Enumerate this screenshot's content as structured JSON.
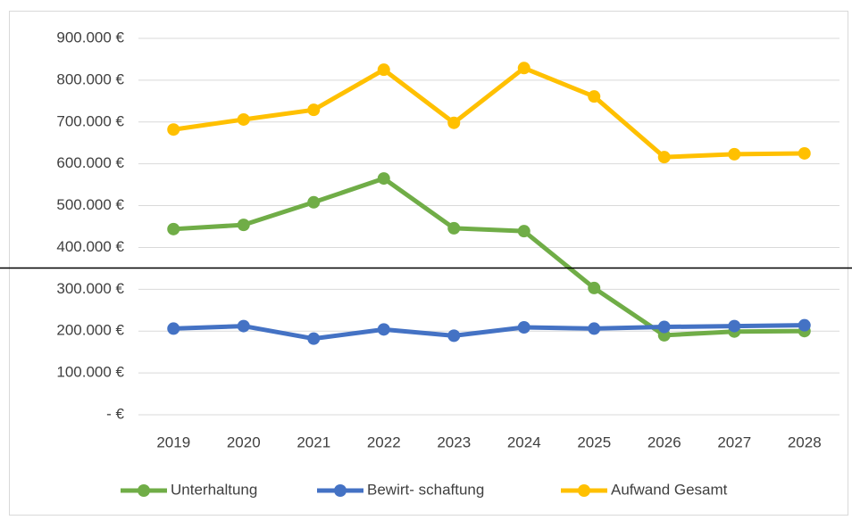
{
  "chart_data": {
    "type": "line",
    "categories": [
      "2019",
      "2020",
      "2021",
      "2022",
      "2023",
      "2024",
      "2025",
      "2026",
      "2027",
      "2028"
    ],
    "series": [
      {
        "name": "Unterhaltung",
        "color": "#70ad47",
        "values": [
          444000,
          454000,
          508000,
          565000,
          446000,
          439000,
          303000,
          190000,
          199000,
          200000
        ]
      },
      {
        "name": "Bewirt- schaftung",
        "color": "#4472c4",
        "values": [
          206000,
          212000,
          182000,
          204000,
          189000,
          209000,
          206000,
          210000,
          212000,
          214000
        ]
      },
      {
        "name": "Aufwand Gesamt",
        "color": "#ffc000",
        "values": [
          682000,
          706000,
          729000,
          825000,
          698000,
          829000,
          761000,
          616000,
          623000,
          625000
        ]
      }
    ],
    "ylim": [
      0,
      900000
    ],
    "yticks": [
      {
        "value": 0,
        "label": "-   €"
      },
      {
        "value": 100000,
        "label": "100.000 €"
      },
      {
        "value": 200000,
        "label": "200.000 €"
      },
      {
        "value": 300000,
        "label": "300.000 €"
      },
      {
        "value": 400000,
        "label": "400.000 €"
      },
      {
        "value": 500000,
        "label": "500.000 €"
      },
      {
        "value": 600000,
        "label": "600.000 €"
      },
      {
        "value": 700000,
        "label": "700.000 €"
      },
      {
        "value": 800000,
        "label": "800.000 €"
      },
      {
        "value": 900000,
        "label": "900.000 €"
      }
    ],
    "grid": true,
    "legend": "bottom"
  }
}
